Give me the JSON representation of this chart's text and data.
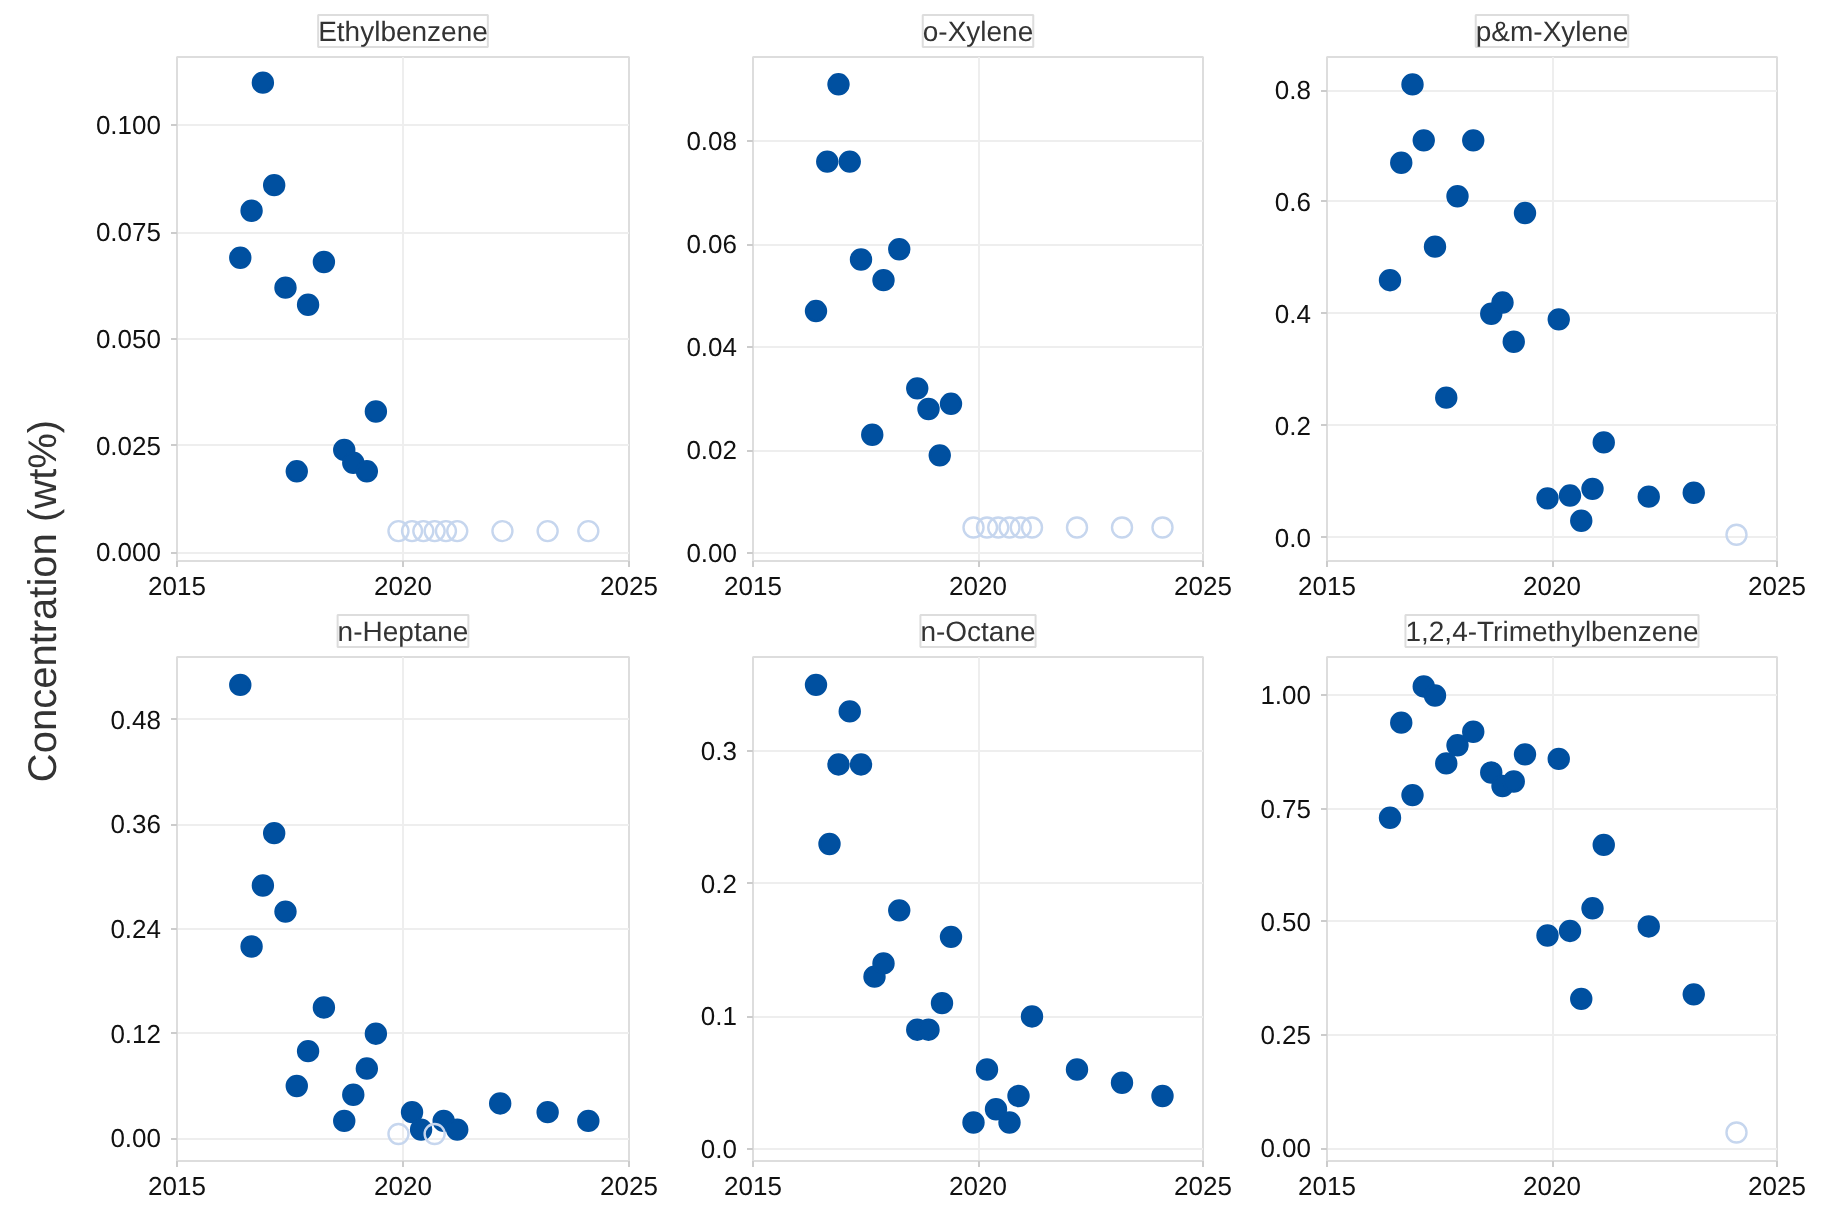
{
  "chart_data": [
    {
      "type": "scatter",
      "title": "Ethylbenzene",
      "ylabel": "Concentration (wt%)",
      "xlim": [
        2015,
        2025
      ],
      "xticks": [
        2015,
        2020,
        2025
      ],
      "ylim": [
        -0.002,
        0.116
      ],
      "yticks": [
        {
          "value": 0,
          "label": "0.000"
        },
        {
          "value": 0.025,
          "label": "0.025"
        },
        {
          "value": 0.05,
          "label": "0.050"
        },
        {
          "value": 0.075,
          "label": "0.075"
        },
        {
          "value": 0.1,
          "label": "0.100"
        }
      ],
      "grid": true,
      "marker": "circle",
      "series": [
        {
          "color": "#0050a0",
          "x": [
            2016.4,
            2016.65,
            2016.9,
            2017.15,
            2017.4,
            2017.65,
            2017.9,
            2018.25,
            2018.7,
            2018.9,
            2019.2,
            2019.4
          ],
          "values": [
            0.069,
            0.08,
            0.11,
            0.086,
            0.062,
            0.019,
            0.058,
            0.068,
            0.024,
            0.021,
            0.019,
            0.033
          ]
        },
        {
          "color": "#c6d6ee",
          "x": [
            2019.9,
            2020.2,
            2020.45,
            2020.7,
            2020.95,
            2021.2,
            2022.2,
            2023.2,
            2024.1
          ],
          "values": [
            0.005,
            0.005,
            0.005,
            0.005,
            0.005,
            0.005,
            0.005,
            0.005,
            0.005
          ]
        }
      ]
    },
    {
      "type": "scatter",
      "title": "o-Xylene",
      "xlim": [
        2015,
        2025
      ],
      "xticks": [
        2015,
        2020,
        2025
      ],
      "ylim": [
        -0.0015,
        0.0963
      ],
      "yticks": [
        {
          "value": 0,
          "label": "0.00"
        },
        {
          "value": 0.02,
          "label": "0.02"
        },
        {
          "value": 0.04,
          "label": "0.04"
        },
        {
          "value": 0.06,
          "label": "0.06"
        },
        {
          "value": 0.08,
          "label": "0.08"
        }
      ],
      "grid": true,
      "marker": "circle",
      "series": [
        {
          "color": "#0050a0",
          "x": [
            2016.4,
            2016.65,
            2016.9,
            2017.15,
            2017.4,
            2017.65,
            2017.9,
            2018.25,
            2018.65,
            2018.9,
            2019.15,
            2019.4
          ],
          "values": [
            0.047,
            0.076,
            0.091,
            0.076,
            0.057,
            0.023,
            0.053,
            0.059,
            0.032,
            0.028,
            0.019,
            0.029
          ]
        },
        {
          "color": "#c6d6ee",
          "x": [
            2019.9,
            2020.2,
            2020.45,
            2020.7,
            2020.95,
            2021.2,
            2022.2,
            2023.2,
            2024.1
          ],
          "values": [
            0.005,
            0.005,
            0.005,
            0.005,
            0.005,
            0.005,
            0.005,
            0.005,
            0.005
          ]
        }
      ]
    },
    {
      "type": "scatter",
      "title": "p&m-Xylene",
      "xlim": [
        2015,
        2025
      ],
      "xticks": [
        2015,
        2020,
        2025
      ],
      "ylim": [
        -0.042,
        0.859
      ],
      "yticks": [
        {
          "value": 0,
          "label": "0.0"
        },
        0.2,
        0.4,
        0.6,
        0.8
      ],
      "grid": true,
      "marker": "circle",
      "series": [
        {
          "color": "#0050a0",
          "x": [
            2016.4,
            2016.65,
            2016.9,
            2017.15,
            2017.4,
            2017.65,
            2017.9,
            2018.25,
            2018.65,
            2018.9,
            2019.15,
            2019.4,
            2019.9,
            2020.15,
            2020.4,
            2020.65,
            2020.9,
            2021.15,
            2022.15,
            2023.15
          ],
          "values": [
            0.46,
            0.67,
            0.81,
            0.71,
            0.52,
            0.25,
            0.61,
            0.71,
            0.4,
            0.42,
            0.35,
            0.58,
            0.07,
            0.39,
            0.075,
            0.03,
            0.087,
            0.17,
            0.073,
            0.08
          ]
        },
        {
          "color": "#c6d6ee",
          "x": [
            2024.1
          ],
          "values": [
            0.005
          ]
        }
      ]
    },
    {
      "type": "scatter",
      "title": "n-Heptane",
      "xlim": [
        2015,
        2025
      ],
      "xticks": [
        2015,
        2020,
        2025
      ],
      "ylim": [
        -0.026,
        0.552
      ],
      "yticks": [
        {
          "value": 0,
          "label": "0.00"
        },
        0.12,
        0.24,
        0.36,
        0.48
      ],
      "grid": true,
      "marker": "circle",
      "series": [
        {
          "color": "#0050a0",
          "x": [
            2016.4,
            2016.65,
            2016.9,
            2017.15,
            2017.4,
            2017.65,
            2017.9,
            2018.25,
            2018.7,
            2018.9,
            2019.2,
            2019.4,
            2020.2,
            2020.4,
            2020.9,
            2021.2,
            2022.15,
            2023.2,
            2024.1
          ],
          "values": [
            0.52,
            0.22,
            0.29,
            0.35,
            0.26,
            0.06,
            0.1,
            0.15,
            0.02,
            0.05,
            0.08,
            0.12,
            0.03,
            0.01,
            0.02,
            0.01,
            0.04,
            0.03,
            0.02
          ]
        },
        {
          "color": "#c6d6ee",
          "x": [
            2019.9,
            2020.7
          ],
          "values": [
            0.005,
            0.005
          ]
        }
      ]
    },
    {
      "type": "scatter",
      "title": "n-Octane",
      "xlim": [
        2015,
        2025
      ],
      "xticks": [
        2015,
        2020,
        2025
      ],
      "ylim": [
        -0.009,
        0.371
      ],
      "yticks": [
        {
          "value": 0,
          "label": "0.0"
        },
        0.1,
        0.2,
        0.3
      ],
      "grid": true,
      "marker": "circle",
      "series": [
        {
          "color": "#0050a0",
          "x": [
            2016.4,
            2016.7,
            2016.9,
            2017.15,
            2017.4,
            2017.7,
            2017.9,
            2018.25,
            2018.65,
            2018.9,
            2019.2,
            2019.4,
            2019.9,
            2020.2,
            2020.4,
            2020.7,
            2020.9,
            2021.2,
            2022.2,
            2023.2,
            2024.1
          ],
          "values": [
            0.35,
            0.23,
            0.29,
            0.33,
            0.29,
            0.13,
            0.14,
            0.18,
            0.09,
            0.09,
            0.11,
            0.16,
            0.02,
            0.06,
            0.03,
            0.02,
            0.04,
            0.1,
            0.06,
            0.05,
            0.04
          ]
        }
      ]
    },
    {
      "type": "scatter",
      "title": "1,2,4-Trimethylbenzene",
      "xlim": [
        2015,
        2025
      ],
      "xticks": [
        2015,
        2020,
        2025
      ],
      "ylim": [
        -0.028,
        1.085
      ],
      "yticks": [
        {
          "value": 0,
          "label": "0.00"
        },
        {
          "value": 0.25,
          "label": "0.25"
        },
        {
          "value": 0.5,
          "label": "0.50"
        },
        {
          "value": 0.75,
          "label": "0.75"
        },
        {
          "value": 1,
          "label": "1.00"
        }
      ],
      "grid": true,
      "marker": "circle",
      "series": [
        {
          "color": "#0050a0",
          "x": [
            2016.4,
            2016.65,
            2016.9,
            2017.15,
            2017.4,
            2017.65,
            2017.9,
            2018.25,
            2018.65,
            2018.9,
            2019.15,
            2019.4,
            2019.9,
            2020.15,
            2020.4,
            2020.65,
            2020.9,
            2021.15,
            2022.15,
            2023.15
          ],
          "values": [
            0.73,
            0.94,
            0.78,
            1.02,
            1.0,
            0.85,
            0.89,
            0.92,
            0.83,
            0.8,
            0.81,
            0.87,
            0.47,
            0.86,
            0.48,
            0.33,
            0.53,
            0.67,
            0.49,
            0.34
          ]
        },
        {
          "color": "#c6d6ee",
          "x": [
            2024.1
          ],
          "values": [
            0.035
          ]
        }
      ]
    }
  ]
}
